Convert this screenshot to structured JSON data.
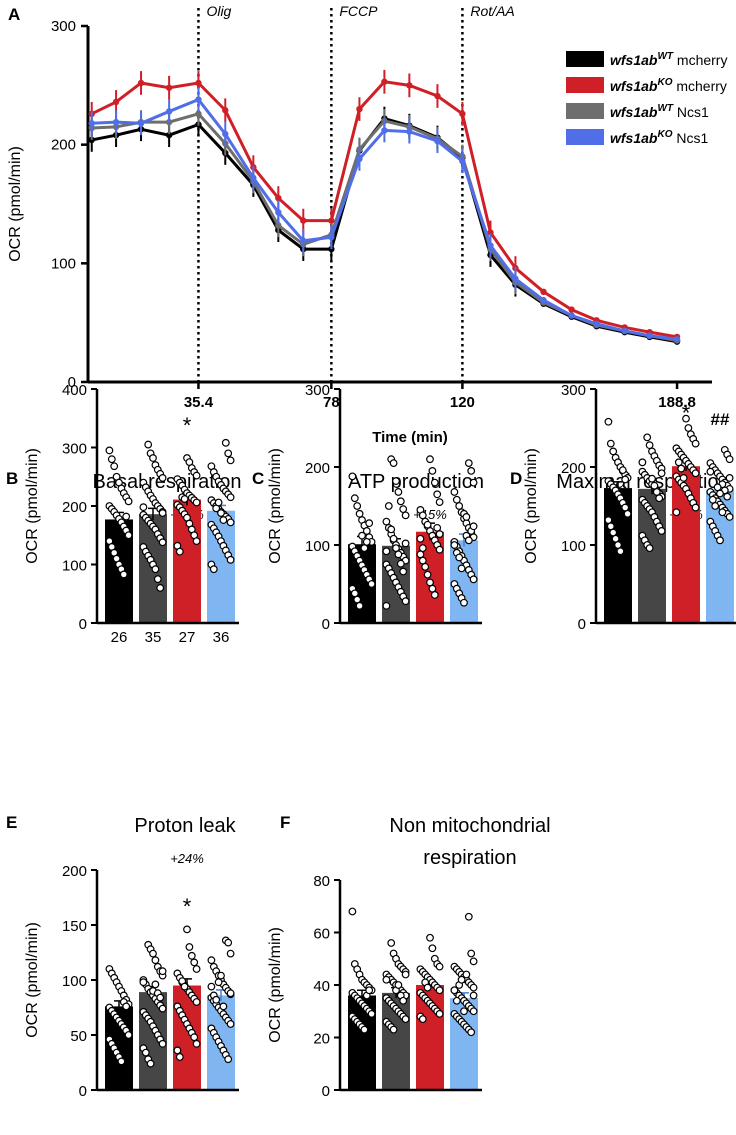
{
  "chart_data": [
    {
      "id": "A",
      "type": "line",
      "panel_label": "A",
      "xlabel": "Time (min)",
      "ylabel": "OCR (pmol/min)",
      "ylim": [
        0,
        300
      ],
      "yticks": [
        0,
        100,
        200,
        300
      ],
      "xlim": [
        0,
        200
      ],
      "xticks": [
        35.4,
        78,
        120,
        188.8
      ],
      "xtick_labels": [
        "35.4",
        "78",
        "120",
        "188.8"
      ],
      "injections": [
        {
          "x": 35.4,
          "label": "Olig"
        },
        {
          "x": 78,
          "label": "FCCP"
        },
        {
          "x": 120,
          "label": "Rot/AA"
        }
      ],
      "x": [
        1.2,
        9.0,
        17.0,
        26.0,
        35.4,
        44.0,
        53.0,
        61.0,
        69.0,
        78.0,
        87.0,
        95.0,
        103.0,
        112.0,
        120.0,
        129.0,
        137.0,
        146.0,
        155.0,
        163.0,
        172.0,
        180.0,
        188.8
      ],
      "series": [
        {
          "name_main": "wfs1ab",
          "name_sup": "WT",
          "name_rest": " mcherry",
          "color": "#000000",
          "err": 10,
          "values": [
            204,
            208,
            213,
            208,
            217,
            193,
            166,
            128,
            112,
            112,
            195,
            222,
            216,
            206,
            189,
            107,
            82,
            66,
            55,
            47,
            42,
            38,
            34
          ]
        },
        {
          "name_main": "wfs1ab",
          "name_sup": "KO",
          "name_rest": " mcherry",
          "color": "#d02027",
          "err": 10,
          "values": [
            226,
            236,
            252,
            248,
            252,
            229,
            181,
            155,
            136,
            136,
            230,
            253,
            250,
            241,
            226,
            126,
            96,
            76,
            61,
            52,
            46,
            42,
            38
          ]
        },
        {
          "name_main": "wfs1ab",
          "name_sup": "WT",
          "name_rest": " Ncs1",
          "color": "#6e6e6e",
          "err": 10,
          "values": [
            214,
            215,
            219,
            219,
            226,
            201,
            169,
            132,
            116,
            124,
            196,
            220,
            215,
            205,
            190,
            112,
            84,
            67,
            56,
            48,
            43,
            39,
            35
          ]
        },
        {
          "name_main": "wfs1ab",
          "name_sup": "KO",
          "name_rest": " Ncs1",
          "color": "#4f6ee8",
          "err": 10,
          "values": [
            218,
            219,
            218,
            228,
            238,
            209,
            172,
            143,
            119,
            122,
            188,
            212,
            211,
            203,
            186,
            115,
            87,
            69,
            56,
            49,
            43,
            39,
            36
          ]
        }
      ]
    },
    {
      "id": "B",
      "type": "bar",
      "panel_label": "B",
      "title": "Basal respiration",
      "ylabel": "OCR (pmol/min)",
      "ylim": [
        0,
        400
      ],
      "yticks": [
        0,
        100,
        200,
        300,
        400
      ],
      "percent": "+19%",
      "sig": [
        {
          "bar": 2,
          "text": "*"
        }
      ],
      "counts": [
        "26",
        "35",
        "27",
        "36"
      ],
      "colors": [
        "#000000",
        "#464646",
        "#d02027",
        "#7fb6f2"
      ],
      "values": [
        177,
        186,
        211,
        192
      ],
      "errors": [
        12,
        10,
        10,
        9
      ],
      "points": [
        [
          295,
          280,
          268,
          250,
          240,
          230,
          222,
          215,
          208,
          200,
          195,
          190,
          184,
          178,
          172,
          165,
          158,
          150,
          140,
          130,
          120,
          110,
          100,
          92,
          83,
          182
        ],
        [
          305,
          290,
          282,
          270,
          262,
          255,
          248,
          240,
          232,
          225,
          218,
          212,
          205,
          200,
          195,
          190,
          185,
          180,
          175,
          170,
          165,
          160,
          152,
          145,
          138,
          130,
          122,
          115,
          108,
          100,
          92,
          75,
          60,
          188,
          198
        ],
        [
          282,
          275,
          265,
          258,
          252,
          246,
          240,
          235,
          228,
          222,
          218,
          214,
          210,
          206,
          202,
          198,
          192,
          186,
          180,
          170,
          160,
          150,
          140,
          132,
          122,
          215,
          212
        ],
        [
          308,
          290,
          278,
          268,
          258,
          250,
          242,
          236,
          230,
          225,
          220,
          215,
          210,
          205,
          200,
          195,
          190,
          186,
          182,
          178,
          172,
          168,
          162,
          155,
          148,
          140,
          132,
          124,
          116,
          108,
          100,
          92,
          196,
          206,
          188,
          176
        ]
      ]
    },
    {
      "id": "C",
      "type": "bar",
      "panel_label": "C",
      "title": "ATP production",
      "ylabel": "OCR (pmol/min)",
      "ylim": [
        0,
        300
      ],
      "yticks": [
        0,
        100,
        200,
        300
      ],
      "percent": "+15%",
      "sig": [],
      "counts": [],
      "colors": [
        "#000000",
        "#464646",
        "#d02027",
        "#7fb6f2"
      ],
      "values": [
        101,
        99,
        117,
        106
      ],
      "errors": [
        10,
        9,
        11,
        8
      ],
      "points": [
        [
          188,
          160,
          150,
          140,
          132,
          125,
          118,
          110,
          104,
          98,
          92,
          86,
          80,
          74,
          68,
          62,
          56,
          50,
          44,
          38,
          30,
          22,
          112,
          96,
          104,
          128
        ],
        [
          210,
          205,
          182,
          168,
          156,
          146,
          138,
          130,
          122,
          114,
          106,
          100,
          95,
          90,
          85,
          80,
          75,
          70,
          64,
          58,
          52,
          46,
          40,
          34,
          28,
          22,
          150,
          120,
          108,
          96,
          88,
          76,
          66,
          102,
          92
        ],
        [
          210,
          195,
          180,
          165,
          155,
          145,
          138,
          130,
          124,
          118,
          112,
          106,
          100,
          94,
          88,
          80,
          72,
          62,
          52,
          44,
          36,
          122,
          114,
          108,
          96,
          130,
          126
        ],
        [
          205,
          195,
          180,
          168,
          158,
          150,
          142,
          134,
          128,
          122,
          116,
          110,
          104,
          98,
          92,
          86,
          80,
          74,
          68,
          62,
          56,
          50,
          44,
          38,
          32,
          26,
          112,
          106,
          118,
          124,
          100,
          90,
          84,
          70,
          140,
          136
        ]
      ]
    },
    {
      "id": "D",
      "type": "bar",
      "panel_label": "D",
      "title": "Maximal respiration",
      "ylabel": "OCR (pmol/min)",
      "ylim": [
        0,
        300
      ],
      "yticks": [
        0,
        100,
        200,
        300
      ],
      "percent": "+17%",
      "sig": [
        {
          "bar": 2,
          "text": "*"
        },
        {
          "bar": 3,
          "text": "##"
        }
      ],
      "counts": [],
      "colors": [
        "#000000",
        "#464646",
        "#d02027",
        "#7fb6f2"
      ],
      "values": [
        173,
        172,
        201,
        171
      ],
      "errors": [
        8,
        7,
        6,
        6
      ],
      "points": [
        [
          258,
          230,
          220,
          212,
          206,
          200,
          195,
          190,
          186,
          182,
          178,
          174,
          170,
          165,
          160,
          154,
          148,
          140,
          132,
          124,
          116,
          108,
          100,
          92,
          196,
          184
        ],
        [
          238,
          228,
          220,
          214,
          208,
          202,
          198,
          194,
          190,
          186,
          182,
          178,
          174,
          170,
          166,
          162,
          158,
          154,
          150,
          146,
          142,
          136,
          130,
          124,
          118,
          112,
          106,
          100,
          96,
          185,
          176,
          168,
          160,
          192,
          206
        ],
        [
          262,
          250,
          242,
          236,
          230,
          224,
          220,
          216,
          212,
          208,
          204,
          200,
          196,
          192,
          188,
          184,
          180,
          176,
          172,
          166,
          160,
          154,
          148,
          142,
          206,
          198,
          186
        ],
        [
          222,
          216,
          210,
          205,
          200,
          196,
          192,
          188,
          184,
          180,
          176,
          172,
          168,
          164,
          160,
          156,
          152,
          148,
          144,
          140,
          136,
          130,
          124,
          118,
          112,
          106,
          178,
          170,
          162,
          186,
          194,
          158,
          150,
          174,
          166,
          142
        ]
      ]
    },
    {
      "id": "E",
      "type": "bar",
      "panel_label": "E",
      "title": "Proton leak",
      "ylabel": "OCR (pmol/min)",
      "ylim": [
        0,
        200
      ],
      "yticks": [
        0,
        50,
        100,
        150,
        200
      ],
      "percent": "+24%",
      "sig": [
        {
          "bar": 2,
          "text": "*"
        }
      ],
      "counts": [],
      "colors": [
        "#000000",
        "#464646",
        "#d02027",
        "#7fb6f2"
      ],
      "values": [
        76,
        89,
        95,
        86
      ],
      "errors": [
        5,
        5,
        6,
        5
      ],
      "points": [
        [
          110,
          106,
          102,
          98,
          94,
          90,
          86,
          82,
          78,
          75,
          72,
          69,
          66,
          63,
          60,
          57,
          54,
          50,
          46,
          42,
          38,
          34,
          30,
          26,
          80,
          76
        ],
        [
          132,
          128,
          124,
          118,
          112,
          108,
          104,
          100,
          96,
          92,
          89,
          86,
          83,
          80,
          77,
          74,
          71,
          68,
          65,
          62,
          58,
          54,
          50,
          46,
          42,
          38,
          34,
          28,
          24,
          90,
          96,
          88,
          84,
          108,
          98
        ],
        [
          146,
          130,
          122,
          116,
          110,
          106,
          102,
          98,
          95,
          92,
          89,
          86,
          83,
          80,
          76,
          72,
          68,
          64,
          60,
          56,
          52,
          48,
          42,
          36,
          30,
          99,
          94
        ],
        [
          136,
          134,
          124,
          118,
          112,
          108,
          104,
          100,
          96,
          93,
          90,
          87,
          84,
          81,
          78,
          75,
          72,
          69,
          66,
          63,
          60,
          56,
          52,
          48,
          44,
          40,
          36,
          32,
          28,
          88,
          94,
          86,
          82,
          98,
          104,
          76
        ]
      ]
    },
    {
      "id": "F",
      "type": "bar",
      "panel_label": "F",
      "title": "Non mitochondrial respiration",
      "title_lines": [
        "Non mitochondrial",
        "respiration"
      ],
      "ylabel": "OCR (pmol/min)",
      "ylim": [
        0,
        80
      ],
      "yticks": [
        0,
        20,
        40,
        60,
        80
      ],
      "percent": "",
      "sig": [],
      "counts": [],
      "colors": [
        "#000000",
        "#464646",
        "#d02027",
        "#7fb6f2"
      ],
      "values": [
        36,
        37,
        40,
        35
      ],
      "errors": [
        2,
        2,
        2,
        2
      ],
      "points": [
        [
          68,
          48,
          46,
          44,
          42,
          41,
          40,
          39,
          38,
          37,
          36,
          35,
          34,
          33,
          32,
          31,
          30,
          29,
          28,
          27,
          26,
          25,
          24,
          23,
          36,
          38
        ],
        [
          56,
          52,
          50,
          48,
          47,
          46,
          45,
          44,
          43,
          42,
          41,
          40,
          39,
          38,
          37,
          36,
          35,
          34,
          33,
          32,
          31,
          30,
          29,
          28,
          27,
          26,
          25,
          24,
          23,
          38,
          40,
          36,
          34,
          44,
          42
        ],
        [
          58,
          54,
          50,
          48,
          47,
          46,
          45,
          44,
          43,
          42,
          41,
          40,
          39,
          38,
          37,
          36,
          35,
          34,
          33,
          32,
          31,
          30,
          29,
          28,
          27,
          41,
          39
        ],
        [
          66,
          52,
          49,
          47,
          46,
          45,
          44,
          43,
          42,
          41,
          40,
          39,
          38,
          37,
          36,
          35,
          34,
          33,
          32,
          31,
          30,
          29,
          28,
          27,
          26,
          25,
          24,
          23,
          22,
          36,
          38,
          34,
          40,
          42,
          30,
          44
        ]
      ]
    }
  ]
}
